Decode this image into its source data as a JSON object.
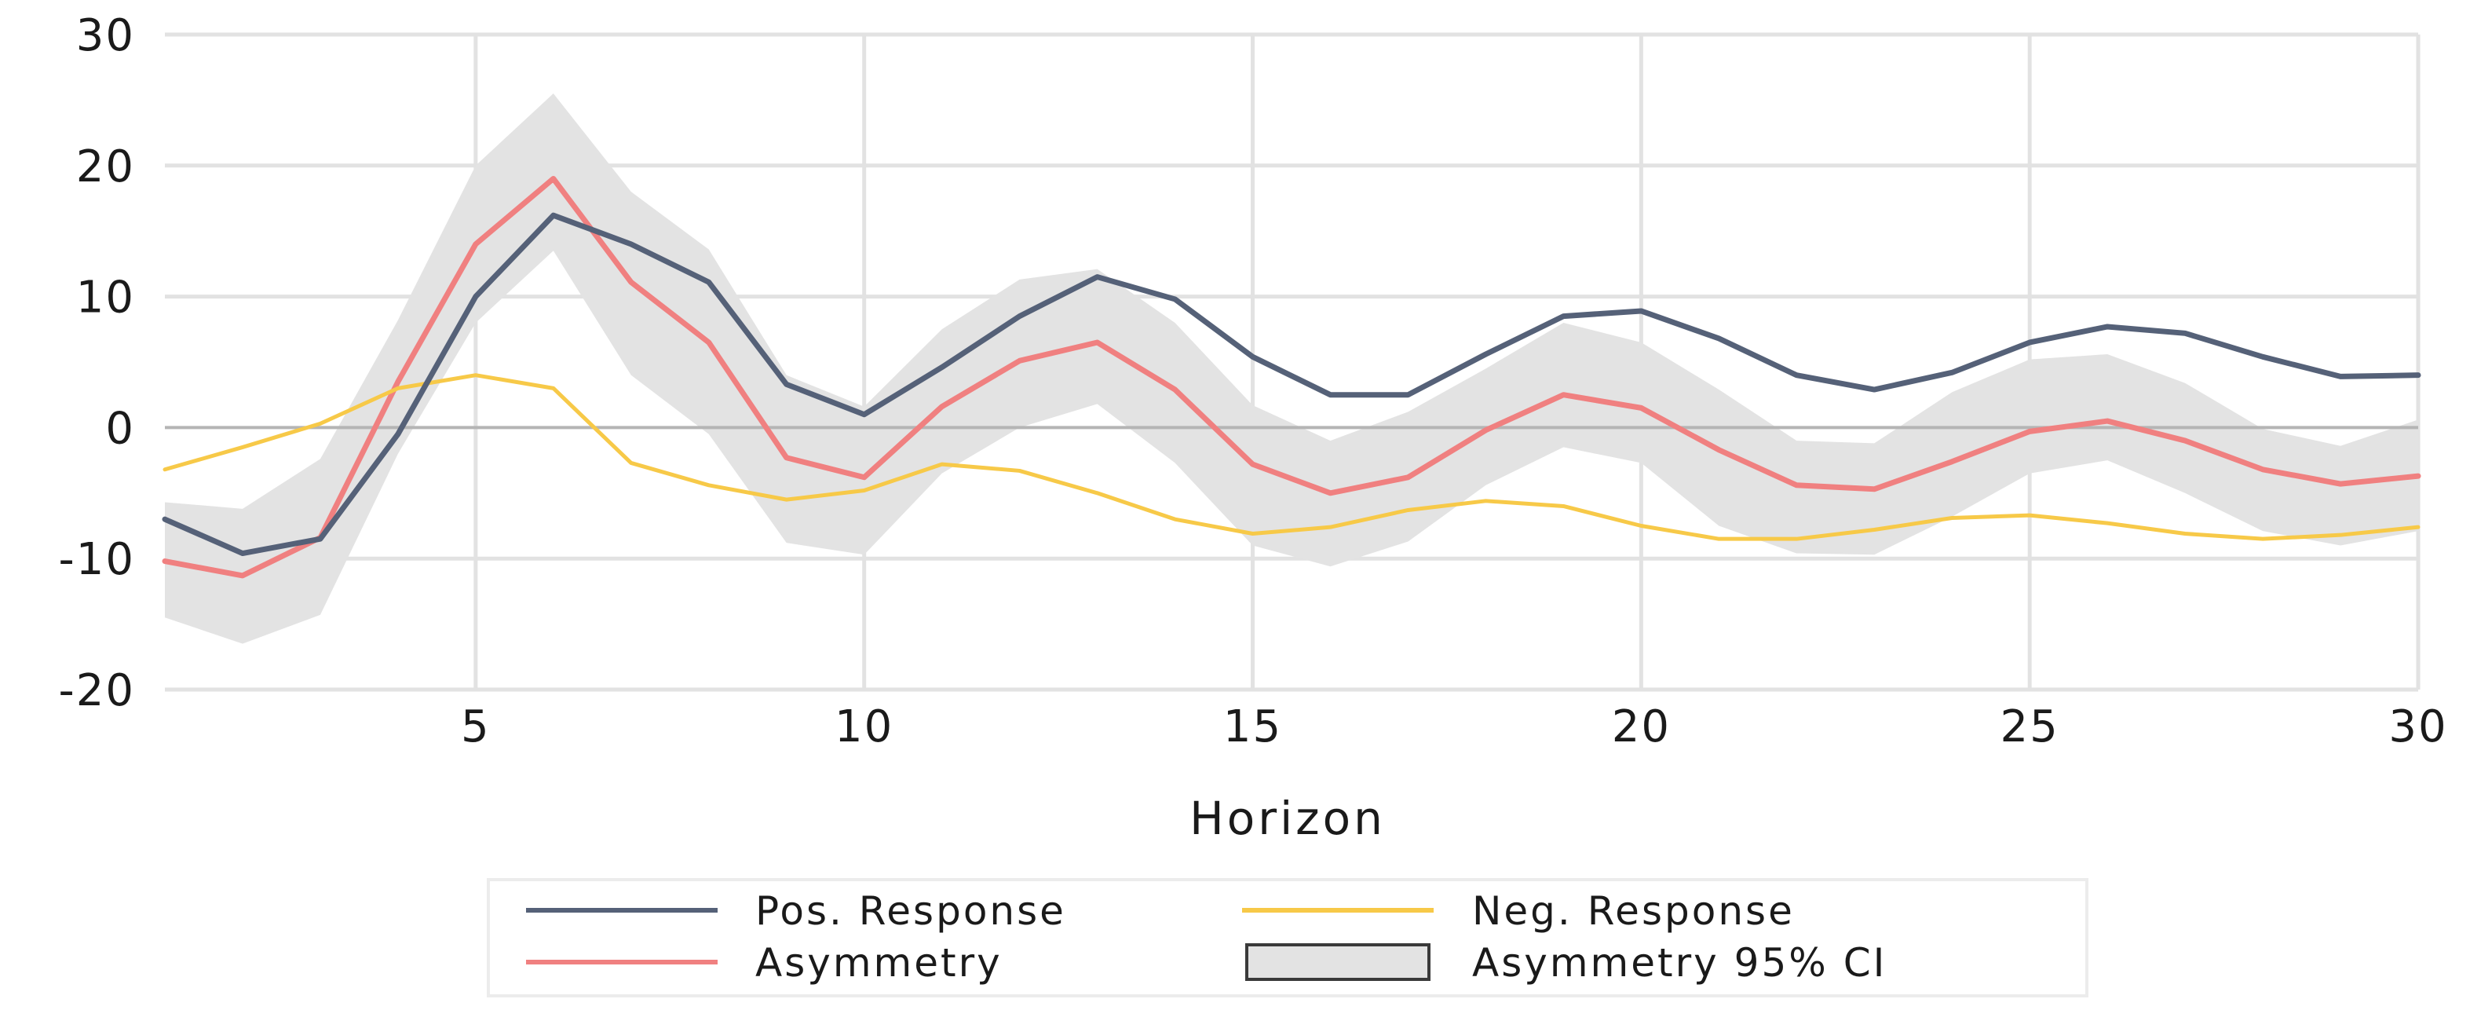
{
  "chart_data": {
    "type": "line",
    "title": "",
    "xlabel": "Horizon",
    "ylabel": "",
    "xlim": [
      1,
      30
    ],
    "ylim": [
      -20,
      30
    ],
    "x_ticks": [
      5,
      10,
      15,
      20,
      25,
      30
    ],
    "y_ticks": [
      -20,
      -10,
      0,
      10,
      20,
      30
    ],
    "x": [
      1,
      2,
      3,
      4,
      5,
      6,
      7,
      8,
      9,
      10,
      11,
      12,
      13,
      14,
      15,
      16,
      17,
      18,
      19,
      20,
      21,
      22,
      23,
      24,
      25,
      26,
      27,
      28,
      29,
      30
    ],
    "series": [
      {
        "name": "Pos. Response",
        "color": "#556178",
        "values": [
          -7,
          -9.6,
          -8.5,
          -0.5,
          10,
          16.2,
          14,
          11.1,
          3.3,
          1,
          4.6,
          8.5,
          11.5,
          9.8,
          5.4,
          2.5,
          2.5,
          5.6,
          8.5,
          8.9,
          6.8,
          4,
          2.9,
          4.2,
          6.5,
          7.7,
          7.2,
          5.4,
          3.9,
          4
        ]
      },
      {
        "name": "Neg. Response",
        "color": "#f7c948",
        "values": [
          -3.2,
          -1.5,
          0.3,
          3,
          4,
          3,
          -2.7,
          -4.4,
          -5.5,
          -4.8,
          -2.8,
          -3.3,
          -5,
          -7,
          -8.1,
          -7.6,
          -6.3,
          -5.6,
          -6,
          -7.5,
          -8.5,
          -8.5,
          -7.8,
          -6.9,
          -6.7,
          -7.3,
          -8.1,
          -8.5,
          -8.2,
          -7.6
        ]
      },
      {
        "name": "Asymmetry",
        "color": "#f08080",
        "values": [
          -10.2,
          -11.3,
          -8.4,
          3.5,
          14,
          19,
          11.1,
          6.5,
          -2.3,
          -3.8,
          1.6,
          5.1,
          6.5,
          2.9,
          -2.8,
          -5,
          -3.8,
          -0.2,
          2.5,
          1.5,
          -1.7,
          -4.4,
          -4.7,
          -2.6,
          -0.3,
          0.5,
          -1,
          -3.2,
          -4.3,
          -3.7
        ]
      },
      {
        "name": "Asymmetry 95% CI",
        "type": "band",
        "color": "#e3e3e3",
        "lower": [
          -14.5,
          -16.5,
          -14.3,
          -2,
          8,
          13.5,
          4,
          -0.5,
          -8.8,
          -9.7,
          -3.5,
          0,
          1.8,
          -2.7,
          -9,
          -10.6,
          -8.7,
          -4.4,
          -1.5,
          -2.7,
          -7.5,
          -9.6,
          -9.7,
          -6.8,
          -3.5,
          -2.5,
          -5,
          -7.9,
          -9,
          -7.9
        ],
        "upper": [
          -5.7,
          -6.2,
          -2.4,
          8.2,
          20,
          25.5,
          18,
          13.6,
          4,
          1.6,
          7.5,
          11.3,
          12.1,
          8,
          1.7,
          -1,
          1.2,
          4.5,
          8,
          6.5,
          2.9,
          -1,
          -1.2,
          2.7,
          5.2,
          5.6,
          3.4,
          -0.1,
          -1.4,
          0.6
        ]
      }
    ],
    "legend": {
      "position": "bottom",
      "items": [
        {
          "label": "Pos. Response",
          "kind": "line",
          "color": "#556178"
        },
        {
          "label": "Neg. Response",
          "kind": "line",
          "color": "#f7c948"
        },
        {
          "label": "Asymmetry",
          "kind": "line",
          "color": "#f08080"
        },
        {
          "label": "Asymmetry 95% CI",
          "kind": "box",
          "color": "#e3e3e3"
        }
      ]
    }
  }
}
